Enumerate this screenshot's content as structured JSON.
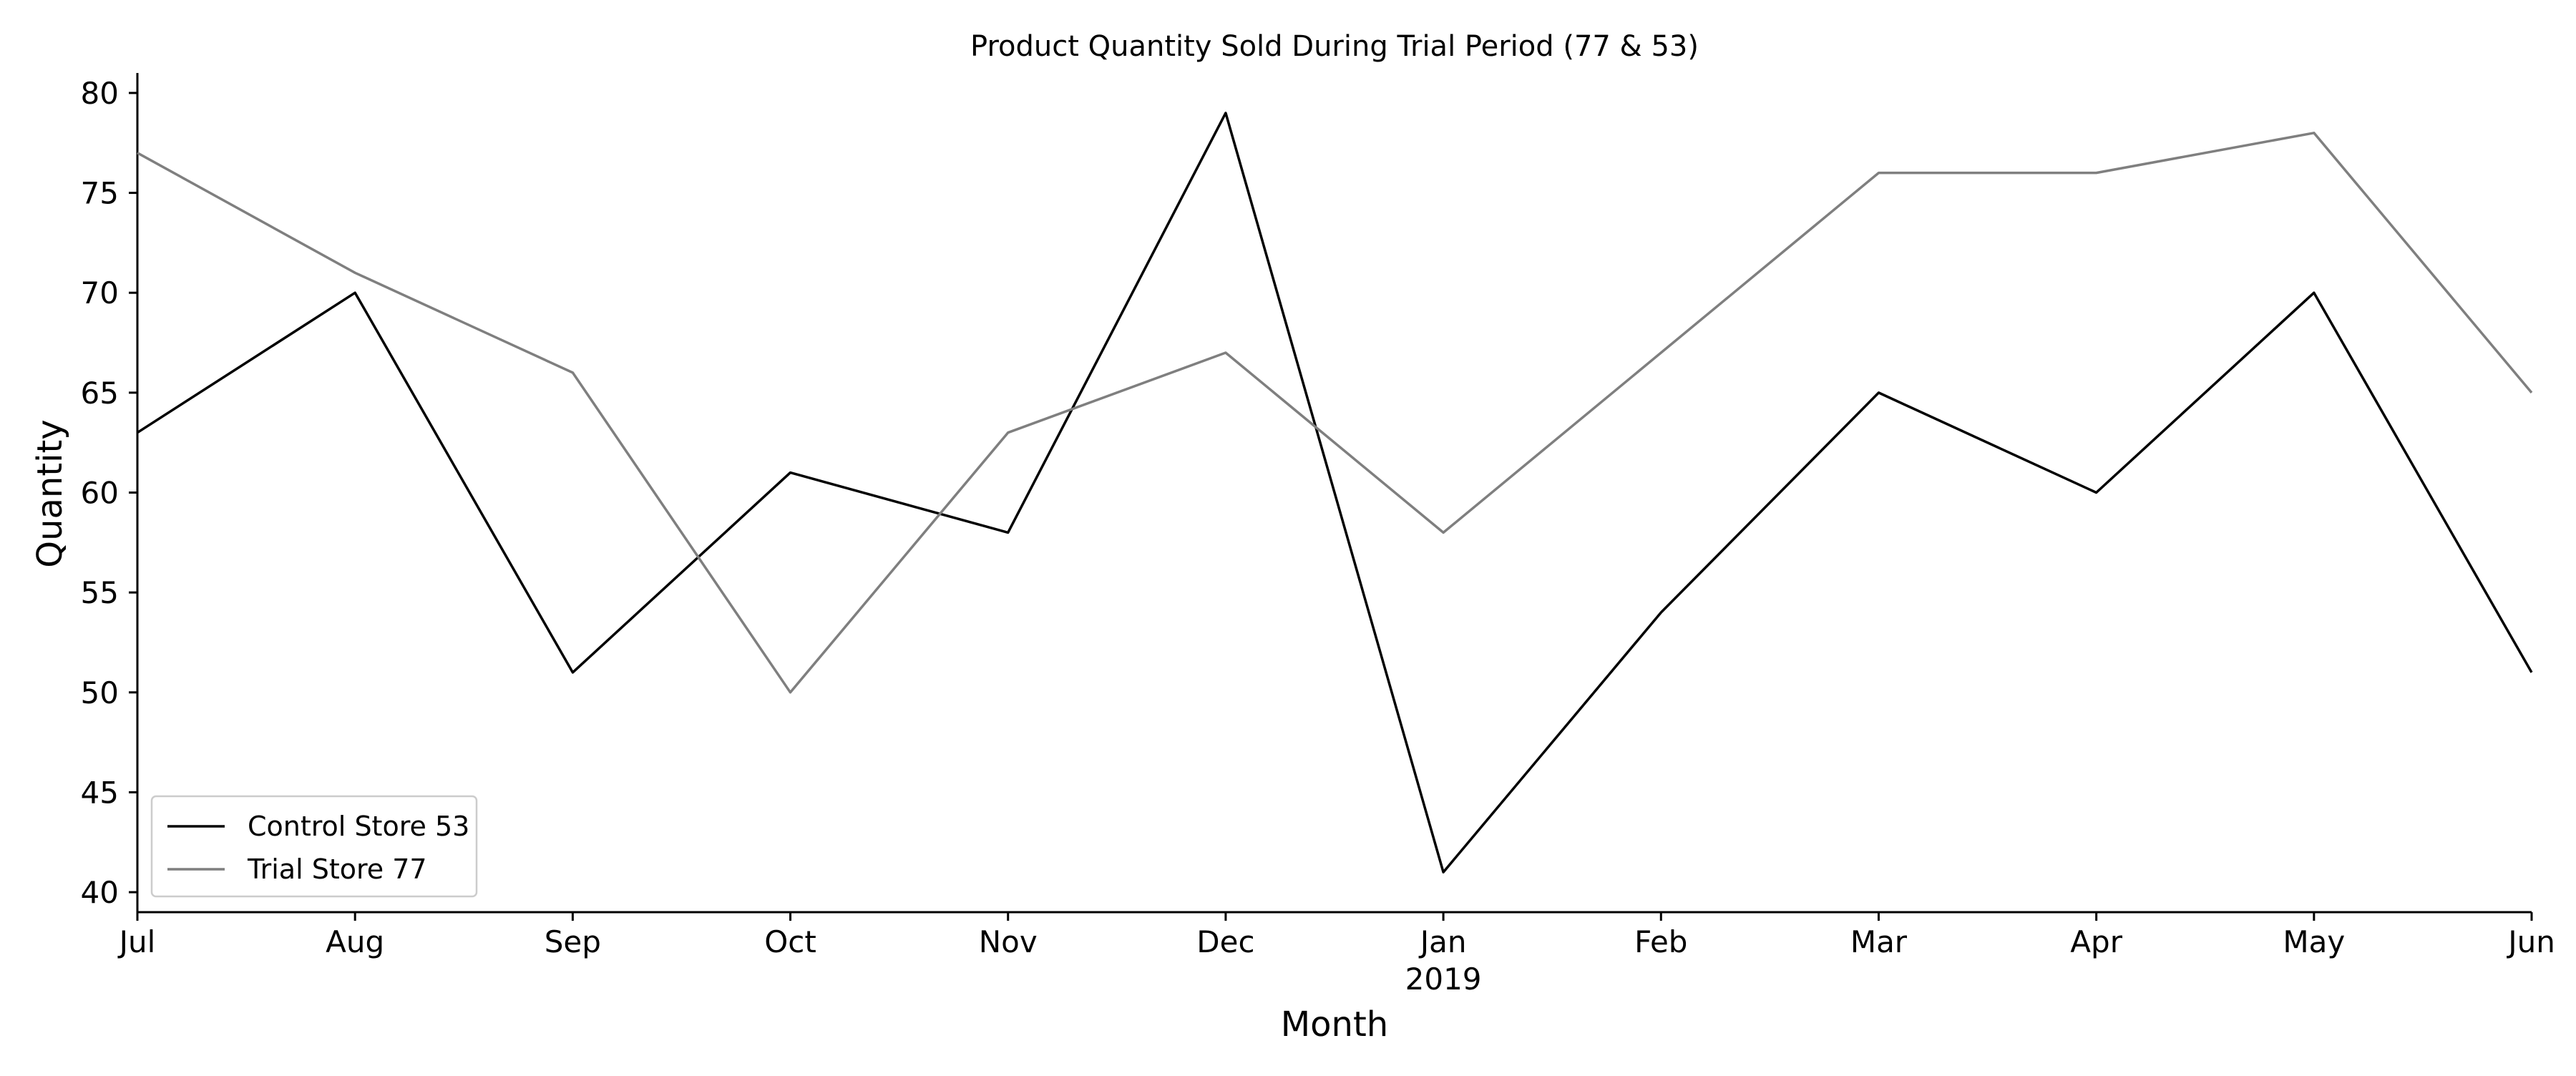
{
  "chart_data": {
    "type": "line",
    "title": "Product Quantity Sold During Trial Period (77 & 53)",
    "xlabel": "Month",
    "ylabel": "Quantity",
    "categories": [
      "Jul",
      "Aug",
      "Sep",
      "Oct",
      "Nov",
      "Dec",
      "Jan",
      "Feb",
      "Mar",
      "Apr",
      "May",
      "Jun"
    ],
    "year_label": "2019",
    "ylim": [
      39,
      81
    ],
    "yticks": [
      40,
      45,
      50,
      55,
      60,
      65,
      70,
      75,
      80
    ],
    "grid": false,
    "legend_position": "bottom-left",
    "series": [
      {
        "name": "Control Store 53",
        "color": "#000000",
        "values": [
          63,
          70,
          51,
          61,
          58,
          79,
          41,
          54,
          65,
          60,
          70,
          51
        ]
      },
      {
        "name": "Trial Store 77",
        "color": "#7f7f7f",
        "values": [
          77,
          71,
          66,
          50,
          63,
          67,
          58,
          67,
          76,
          76,
          78,
          65
        ]
      }
    ]
  }
}
